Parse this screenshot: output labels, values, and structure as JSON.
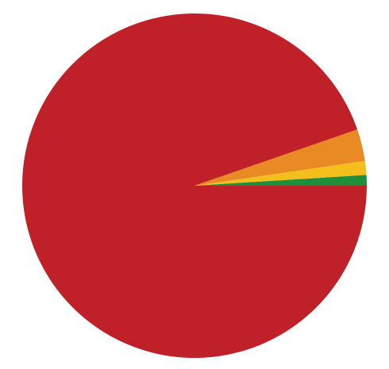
{
  "chart_data": {
    "type": "pie",
    "start_angle_deg": 0,
    "direction": "counterclockwise",
    "slices": [
      {
        "value": 1.0,
        "color": "#1f8f3a"
      },
      {
        "value": 1.3,
        "color": "#f4be1c"
      },
      {
        "value": 3.0,
        "color": "#e98a24"
      },
      {
        "value": 94.7,
        "color": "#c02027"
      }
    ]
  }
}
